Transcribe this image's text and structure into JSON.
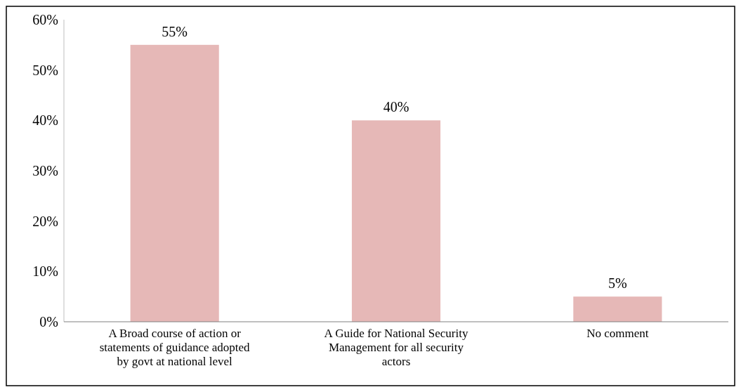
{
  "chart_data": {
    "type": "bar",
    "categories": [
      "A Broad course of action or statements of guidance adopted by govt at national level",
      "A Guide for National Security Management for all security actors",
      "No comment"
    ],
    "values": [
      55,
      40,
      5
    ],
    "value_labels": [
      "55%",
      "40%",
      "5%"
    ],
    "color": "#e6b8b7",
    "ylim": [
      0,
      60
    ],
    "yticks": [
      {
        "value": 0,
        "label": "0%"
      },
      {
        "value": 10,
        "label": "10%"
      },
      {
        "value": 20,
        "label": "20%"
      },
      {
        "value": 30,
        "label": "30%"
      },
      {
        "value": 40,
        "label": "40%"
      },
      {
        "value": 50,
        "label": "50%"
      },
      {
        "value": 60,
        "label": "60%"
      }
    ]
  }
}
